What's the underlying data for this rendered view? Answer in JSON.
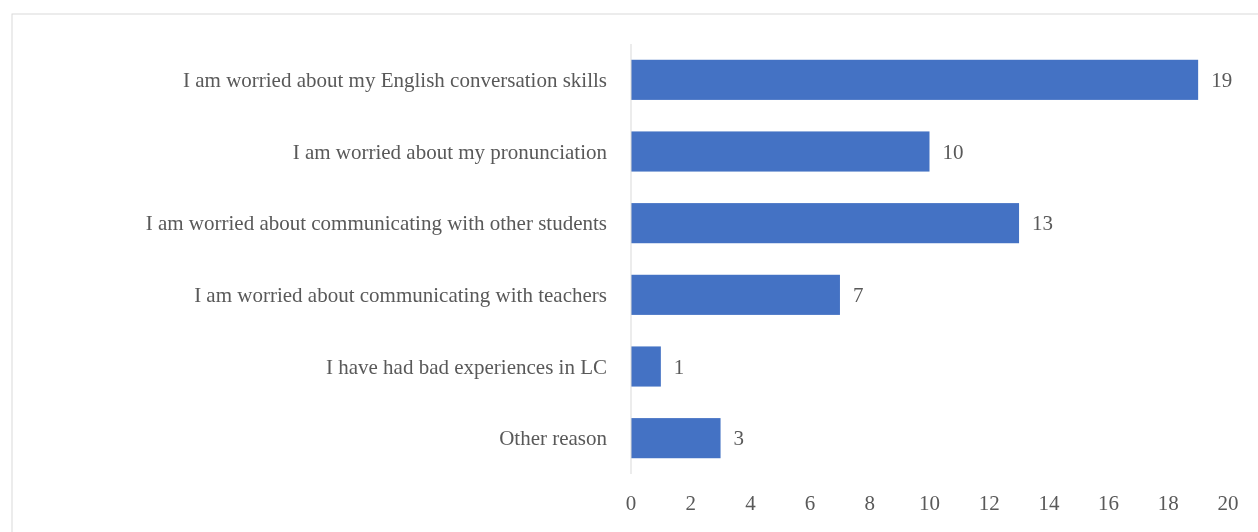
{
  "chart_data": {
    "type": "bar",
    "orientation": "horizontal",
    "categories": [
      "I am worried about my English conversation skills",
      "I am worried about my pronunciation",
      "I am worried about communicating with other students",
      "I am worried about communicating with teachers",
      "I have had bad experiences in LC",
      "Other reason"
    ],
    "values": [
      19,
      10,
      13,
      7,
      1,
      3
    ],
    "color": "#4472c4",
    "xlim": [
      0,
      20
    ],
    "xticks": [
      0,
      2,
      4,
      6,
      8,
      10,
      12,
      14,
      16,
      18,
      20
    ],
    "grid": false,
    "data_labels": true
  }
}
